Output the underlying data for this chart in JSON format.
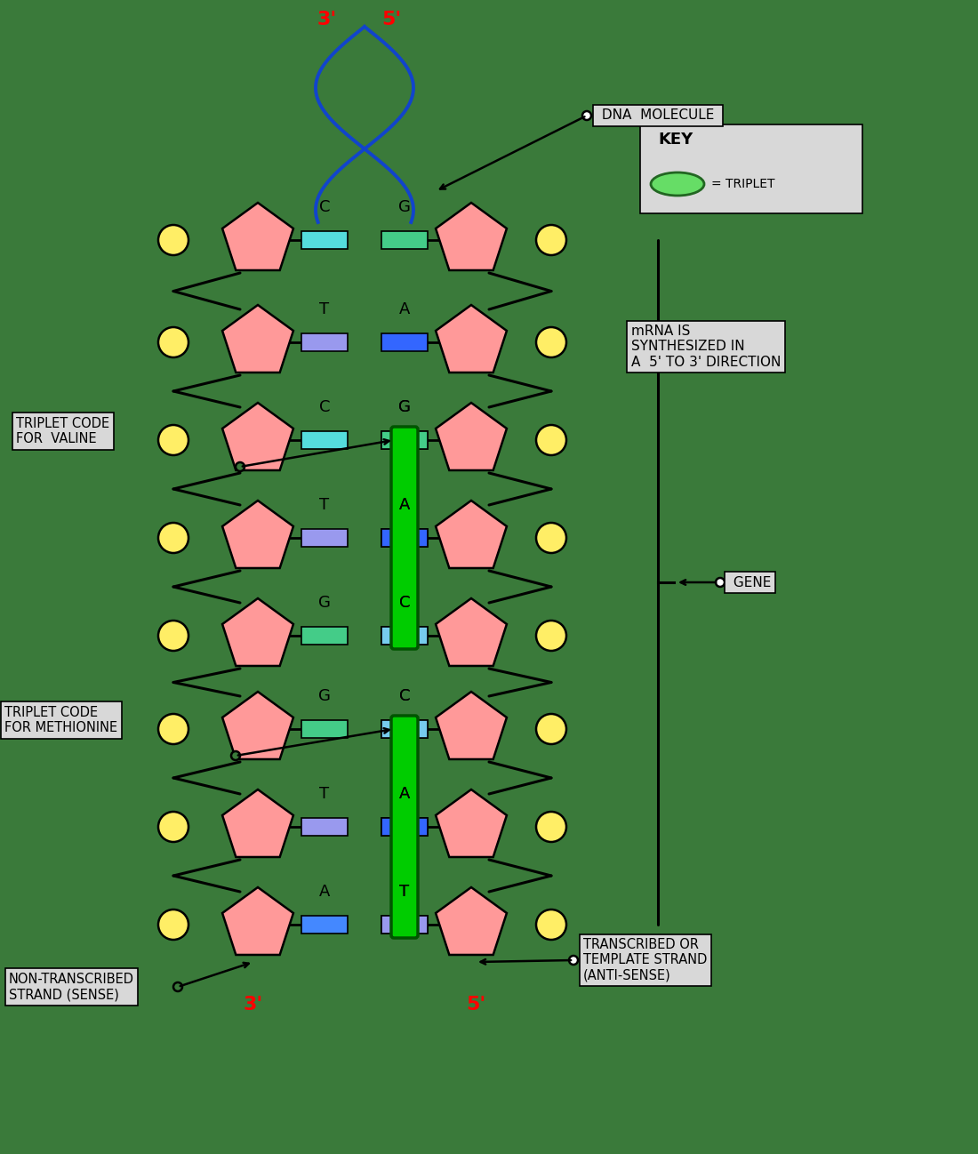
{
  "background_color": "#3a7a3a",
  "fig_width": 11.0,
  "fig_height": 12.98,
  "dpi": 100,
  "left_bases": [
    "C",
    "T",
    "C",
    "T",
    "G",
    "G",
    "T",
    "A"
  ],
  "right_bases": [
    "G",
    "A",
    "G",
    "A",
    "C",
    "C",
    "A",
    "T"
  ],
  "left_rect_colors": [
    "#55dddd",
    "#9999ee",
    "#55dddd",
    "#9999ee",
    "#44cc88",
    "#44cc88",
    "#9999ee",
    "#4488ff"
  ],
  "right_rect_colors": [
    "#44cc88",
    "#3366ff",
    "#44cc88",
    "#3366ff",
    "#77ccee",
    "#77ccee",
    "#3366ff",
    "#9999ee"
  ],
  "triplet1_indices": [
    2,
    3,
    4
  ],
  "triplet2_indices": [
    5,
    6,
    7
  ],
  "dna_helix_color": "#1144cc",
  "pentagon_color": "#ff9999",
  "circle_color": "#ffee66",
  "label_dna_molecule": " DNA  MOLECULE ",
  "label_gene": " GENE",
  "label_triplet_valine": "TRIPLET CODE\nFOR  VALINE",
  "label_triplet_methionine": "TRIPLET CODE\nFOR METHIONINE",
  "label_non_transcribed": "NON-TRANSCRIBED\nSTRAND (SENSE)",
  "label_transcribed": "TRANSCRIBED OR\nTEMPLATE STRAND\n(ANTI-SENSE)",
  "label_mrna": "mRNA IS\nSYNTHESIZED IN\nA  5’ TO 3’ DIRECTION",
  "label_key_title": "KEY",
  "label_key_triplet": "= TRIPLET"
}
